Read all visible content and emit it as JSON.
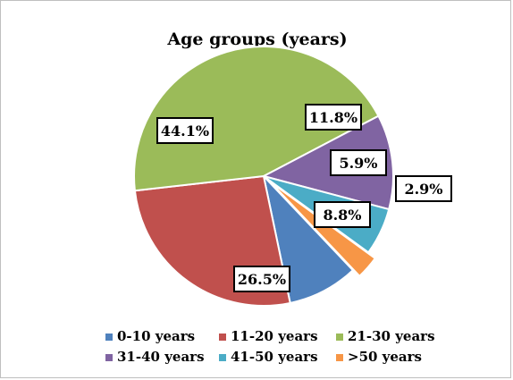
{
  "chart_data": {
    "type": "pie",
    "title": "Age groups  (years)",
    "series": [
      {
        "name": "0-10 years",
        "value": 8.8,
        "label": "8.8%",
        "color": "#4f81bd"
      },
      {
        "name": "11-20 years",
        "value": 26.5,
        "label": "26.5%",
        "color": "#c0504d"
      },
      {
        "name": "21-30 years",
        "value": 44.1,
        "label": "44.1%",
        "color": "#9bbb59"
      },
      {
        "name": "31-40 years",
        "value": 11.8,
        "label": "11.8%",
        "color": "#8064a2"
      },
      {
        "name": "41-50 years",
        "value": 5.9,
        "label": "5.9%",
        "color": "#4bacc6"
      },
      {
        "name": ">50 years",
        "value": 2.9,
        "label": "2.9%",
        "color": "#f79646"
      }
    ],
    "legend_position": "bottom"
  }
}
